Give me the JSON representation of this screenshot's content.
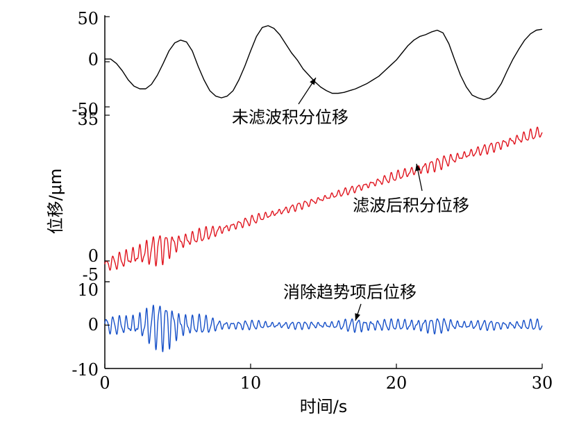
{
  "chart_data": {
    "type": "line",
    "xlabel": "时间/s",
    "ylabel": "位移/μm",
    "xlim": [
      0,
      30
    ],
    "xticks": [
      "0",
      "10",
      "20",
      "30"
    ],
    "grid": false,
    "panels": [
      {
        "name": "未滤波积分位移",
        "annotation": "未滤波积分位移",
        "color": "#000000",
        "ylim": [
          -50,
          50
        ],
        "yticks": [
          "50",
          "0",
          "-50"
        ],
        "x": [
          0,
          0.4,
          0.8,
          1.2,
          1.6,
          2.0,
          2.4,
          2.8,
          3.2,
          3.6,
          4.0,
          4.4,
          4.8,
          5.2,
          5.6,
          6.0,
          6.4,
          6.8,
          7.2,
          7.6,
          8.0,
          8.4,
          8.8,
          9.2,
          9.6,
          10.0,
          10.4,
          10.8,
          11.2,
          11.6,
          12.0,
          12.4,
          12.8,
          13.2,
          13.6,
          14.0,
          14.4,
          14.8,
          15.2,
          15.6,
          16.0,
          16.4,
          16.8,
          17.2,
          17.6,
          18.0,
          18.4,
          18.8,
          19.2,
          19.6,
          20.0,
          20.4,
          20.8,
          21.2,
          21.6,
          22.0,
          22.4,
          22.8,
          23.2,
          23.6,
          24.0,
          24.4,
          24.8,
          25.2,
          25.6,
          26.0,
          26.4,
          26.8,
          27.2,
          27.6,
          28.0,
          28.4,
          28.8,
          29.2,
          29.6,
          30.0
        ],
        "values": [
          3,
          3,
          -2,
          -10,
          -20,
          -27,
          -30,
          -30,
          -25,
          -15,
          -2,
          12,
          21,
          24,
          22,
          12,
          -5,
          -20,
          -32,
          -38,
          -40,
          -38,
          -32,
          -20,
          -5,
          12,
          28,
          38,
          40,
          37,
          30,
          20,
          10,
          2,
          -8,
          -15,
          -22,
          -28,
          -32,
          -35,
          -35,
          -34,
          -32,
          -30,
          -27,
          -24,
          -20,
          -16,
          -10,
          -4,
          2,
          10,
          18,
          24,
          28,
          30,
          33,
          35,
          32,
          20,
          2,
          -15,
          -28,
          -37,
          -40,
          -42,
          -40,
          -34,
          -24,
          -10,
          3,
          14,
          24,
          31,
          35,
          36
        ]
      },
      {
        "name": "滤波后积分位移",
        "annotation": "滤波后积分位移",
        "color": "#e0141e",
        "ylim": [
          -5,
          35
        ],
        "yticks": [
          "35",
          "0",
          "-5"
        ],
        "trend": {
          "start": -1,
          "end": 31
        },
        "envelope": [
          [
            0,
            1.0
          ],
          [
            2,
            3.0
          ],
          [
            4,
            3.5
          ],
          [
            6,
            1.8
          ],
          [
            8,
            1.2
          ],
          [
            12,
            0.9
          ],
          [
            16,
            0.8
          ],
          [
            20,
            1.1
          ],
          [
            22,
            1.6
          ],
          [
            24,
            1.3
          ],
          [
            26,
            1.1
          ],
          [
            28,
            1.4
          ],
          [
            30,
            1.2
          ]
        ],
        "frequency_hz": 2.2
      },
      {
        "name": "消除趋势项后位移",
        "annotation": "消除趋势项后位移",
        "color": "#1650c8",
        "ylim": [
          -10,
          10
        ],
        "yticks": [
          "10",
          "0",
          "-10"
        ],
        "envelope": [
          [
            0,
            1.5
          ],
          [
            1.5,
            2.5
          ],
          [
            3,
            4.5
          ],
          [
            4.5,
            5.5
          ],
          [
            6,
            2.5
          ],
          [
            8,
            1.2
          ],
          [
            12,
            0.8
          ],
          [
            16,
            0.9
          ],
          [
            17.5,
            1.8
          ],
          [
            20,
            1.1
          ],
          [
            22,
            2.0
          ],
          [
            24,
            1.2
          ],
          [
            27,
            1.0
          ],
          [
            30,
            1.2
          ]
        ],
        "frequency_hz": 2.2
      }
    ]
  }
}
